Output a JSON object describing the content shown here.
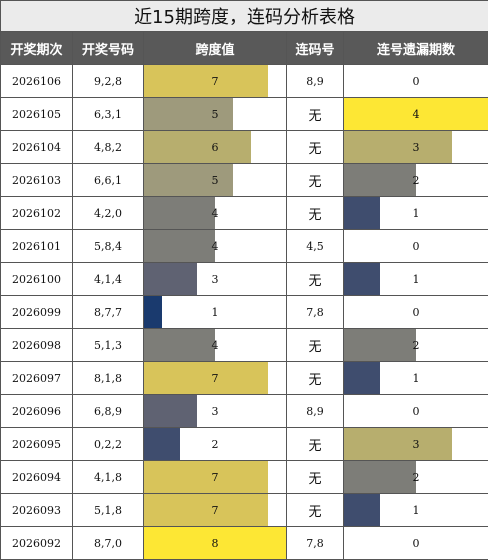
{
  "title": "近15期跨度，连码分析表格",
  "headers": [
    "开奖期次",
    "开奖号码",
    "跨度值",
    "连码号",
    "连号遗漏期数"
  ],
  "span_max": 8,
  "miss_max": 4,
  "colors": {
    "span_1": "#1a3a6e",
    "span_2": "#3f4d6e",
    "span_3": "#5f6272",
    "span_4": "#7d7d78",
    "span_5": "#9e9a7c",
    "span_6": "#b7ae6e",
    "span_7": "#d8c45a",
    "span_8": "#fde734",
    "miss_1": "#3f4d6e",
    "miss_2": "#7d7d78",
    "miss_3": "#b7ae6e",
    "miss_4": "#fde734"
  },
  "rows": [
    {
      "period": "2026106",
      "numbers": "9,2,8",
      "span": 7,
      "consec": "8,9",
      "miss": 0
    },
    {
      "period": "2026105",
      "numbers": "6,3,1",
      "span": 5,
      "consec": "无",
      "miss": 4
    },
    {
      "period": "2026104",
      "numbers": "4,8,2",
      "span": 6,
      "consec": "无",
      "miss": 3
    },
    {
      "period": "2026103",
      "numbers": "6,6,1",
      "span": 5,
      "consec": "无",
      "miss": 2
    },
    {
      "period": "2026102",
      "numbers": "4,2,0",
      "span": 4,
      "consec": "无",
      "miss": 1
    },
    {
      "period": "2026101",
      "numbers": "5,8,4",
      "span": 4,
      "consec": "4,5",
      "miss": 0
    },
    {
      "period": "2026100",
      "numbers": "4,1,4",
      "span": 3,
      "consec": "无",
      "miss": 1
    },
    {
      "period": "2026099",
      "numbers": "8,7,7",
      "span": 1,
      "consec": "7,8",
      "miss": 0
    },
    {
      "period": "2026098",
      "numbers": "5,1,3",
      "span": 4,
      "consec": "无",
      "miss": 2
    },
    {
      "period": "2026097",
      "numbers": "8,1,8",
      "span": 7,
      "consec": "无",
      "miss": 1
    },
    {
      "period": "2026096",
      "numbers": "6,8,9",
      "span": 3,
      "consec": "8,9",
      "miss": 0
    },
    {
      "period": "2026095",
      "numbers": "0,2,2",
      "span": 2,
      "consec": "无",
      "miss": 3
    },
    {
      "period": "2026094",
      "numbers": "4,1,8",
      "span": 7,
      "consec": "无",
      "miss": 2
    },
    {
      "period": "2026093",
      "numbers": "5,1,8",
      "span": 7,
      "consec": "无",
      "miss": 1
    },
    {
      "period": "2026092",
      "numbers": "8,7,0",
      "span": 8,
      "consec": "7,8",
      "miss": 0
    }
  ]
}
